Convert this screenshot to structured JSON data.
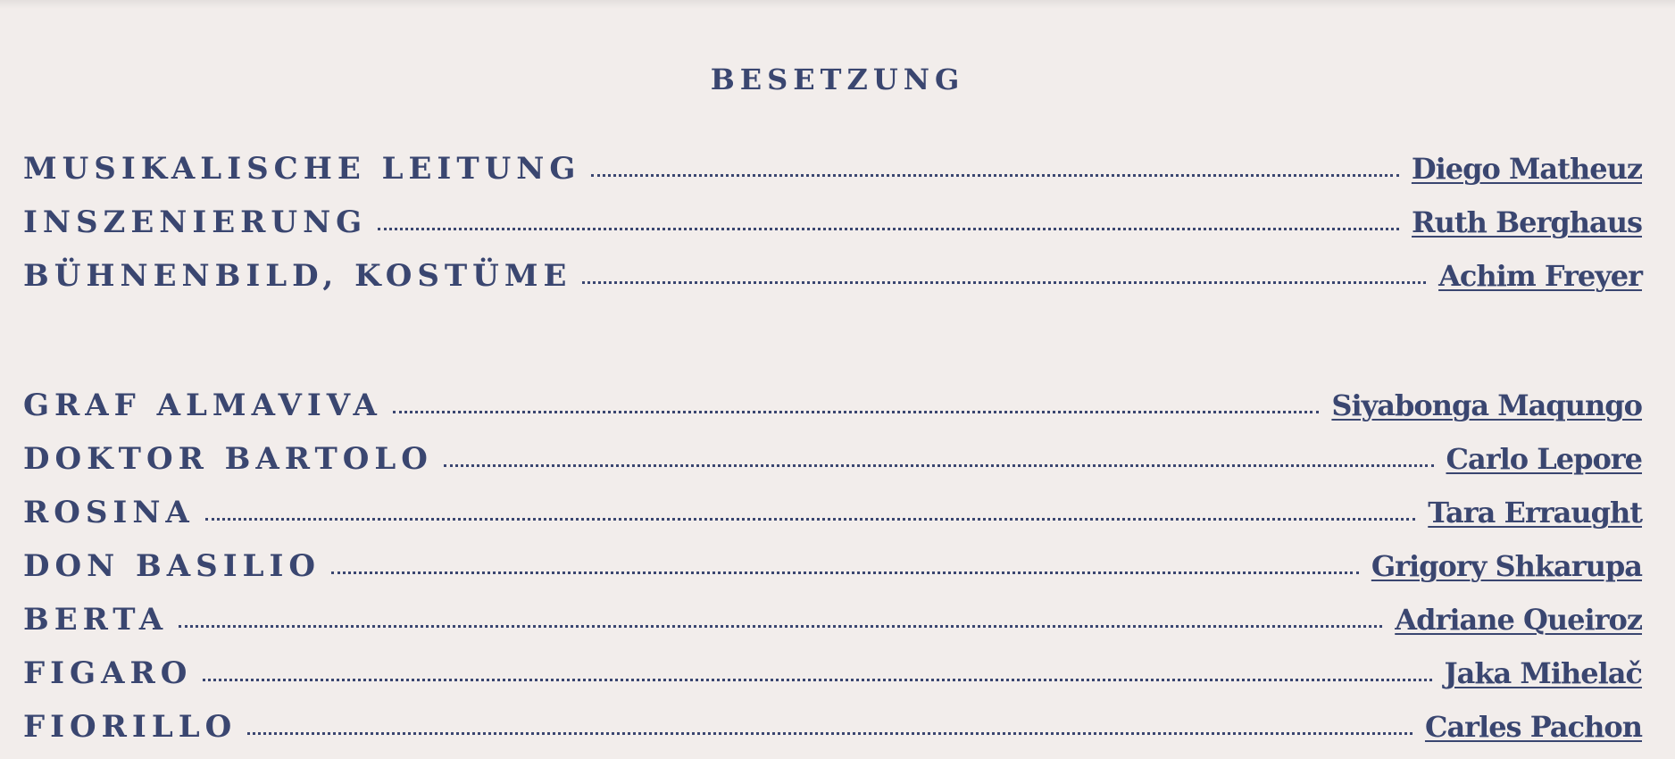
{
  "heading": "BESETZUNG",
  "colors": {
    "background": "#f2edeb",
    "text": "#3a4670"
  },
  "production_team": [
    {
      "role": "MUSIKALISCHE LEITUNG",
      "name": "Diego Matheuz"
    },
    {
      "role": "INSZENIERUNG",
      "name": "Ruth Berghaus"
    },
    {
      "role": "BÜHNENBILD, KOSTÜME",
      "name": "Achim Freyer"
    }
  ],
  "cast": [
    {
      "role": "GRAF ALMAVIVA",
      "name": "Siyabonga Maqungo"
    },
    {
      "role": "DOKTOR BARTOLO",
      "name": "Carlo Lepore"
    },
    {
      "role": "ROSINA",
      "name": "Tara Erraught"
    },
    {
      "role": "DON BASILIO",
      "name": "Grigory Shkarupa"
    },
    {
      "role": "BERTA",
      "name": "Adriane Queiroz"
    },
    {
      "role": "FIGARO",
      "name": "Jaka Mihelač"
    },
    {
      "role": "FIORILLO",
      "name": "Carles Pachon"
    }
  ]
}
